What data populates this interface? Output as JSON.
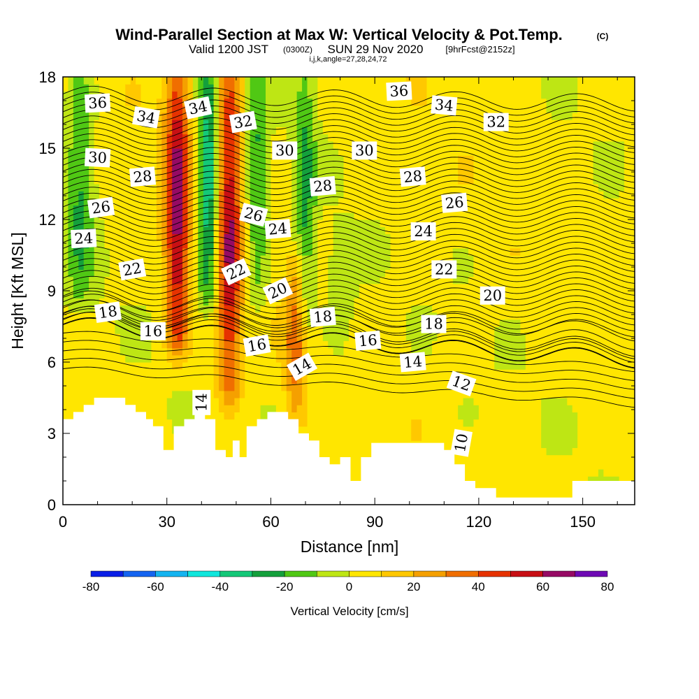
{
  "header": {
    "title": "Wind-Parallel Section at Max W: Vertical Velocity & Pot.Temp.",
    "title_units": "(C)",
    "valid_prefix": "Valid 1200 JST",
    "valid_utc": "(0300Z)",
    "valid_date": "SUN 29 Nov 2020",
    "forecast": "[9hrFcst@2152z]",
    "indices": "i,j,k,angle=27,28,24,72"
  },
  "chart_data": {
    "type": "heatmap",
    "xlabel": "Distance [nm]",
    "ylabel": "Height [Kft MSL]",
    "xlim": [
      0,
      165
    ],
    "ylim": [
      0,
      18
    ],
    "x_ticks": [
      0,
      30,
      60,
      90,
      120,
      150
    ],
    "y_ticks": [
      0,
      3,
      6,
      9,
      12,
      15,
      18
    ],
    "colorbar": {
      "label": "Vertical Velocity [cm/s]",
      "ticks": [
        -80,
        -60,
        -40,
        -20,
        0,
        20,
        40,
        60,
        80
      ],
      "levels": [
        -80,
        -70,
        -60,
        -50,
        -40,
        -30,
        -20,
        -10,
        0,
        10,
        20,
        30,
        40,
        50,
        60,
        70,
        80
      ],
      "colors": [
        "#0a1ee6",
        "#1464f0",
        "#14b4f0",
        "#10e6dc",
        "#14c878",
        "#14a03c",
        "#50c814",
        "#bee614",
        "#ffe600",
        "#ffc800",
        "#f5a000",
        "#f06e00",
        "#e63200",
        "#c80f14",
        "#960a64",
        "#6e0ab4"
      ]
    },
    "terrain_kft": [
      [
        0,
        3.6
      ],
      [
        3,
        3.6
      ],
      [
        3,
        3.9
      ],
      [
        6,
        3.9
      ],
      [
        6,
        4.2
      ],
      [
        9,
        4.2
      ],
      [
        9,
        4.5
      ],
      [
        18,
        4.5
      ],
      [
        18,
        4.2
      ],
      [
        21,
        4.2
      ],
      [
        21,
        3.9
      ],
      [
        24,
        3.9
      ],
      [
        24,
        3.6
      ],
      [
        26,
        3.6
      ],
      [
        26,
        3.3
      ],
      [
        29,
        3.3
      ],
      [
        29,
        2.3
      ],
      [
        32,
        2.3
      ],
      [
        32,
        3.3
      ],
      [
        35,
        3.3
      ],
      [
        35,
        3.6
      ],
      [
        38,
        3.6
      ],
      [
        38,
        3.9
      ],
      [
        41,
        3.9
      ],
      [
        41,
        3.6
      ],
      [
        44,
        3.6
      ],
      [
        44,
        2.3
      ],
      [
        47,
        2.3
      ],
      [
        47,
        2.0
      ],
      [
        49,
        2.0
      ],
      [
        49,
        2.7
      ],
      [
        51,
        2.7
      ],
      [
        51,
        2.0
      ],
      [
        53,
        2.0
      ],
      [
        53,
        3.3
      ],
      [
        56,
        3.3
      ],
      [
        56,
        3.6
      ],
      [
        59,
        3.6
      ],
      [
        59,
        3.9
      ],
      [
        65,
        3.9
      ],
      [
        65,
        3.6
      ],
      [
        68,
        3.6
      ],
      [
        68,
        3.0
      ],
      [
        71,
        3.0
      ],
      [
        71,
        2.7
      ],
      [
        74,
        2.7
      ],
      [
        74,
        2.0
      ],
      [
        77,
        2.0
      ],
      [
        77,
        1.7
      ],
      [
        80,
        1.7
      ],
      [
        80,
        2.0
      ],
      [
        83,
        2.0
      ],
      [
        83,
        1.0
      ],
      [
        86,
        1.0
      ],
      [
        86,
        2.0
      ],
      [
        89,
        2.0
      ],
      [
        89,
        2.6
      ],
      [
        95,
        2.6
      ],
      [
        95,
        2.6
      ],
      [
        110,
        2.6
      ],
      [
        110,
        2.3
      ],
      [
        113,
        2.3
      ],
      [
        113,
        1.7
      ],
      [
        116,
        1.7
      ],
      [
        116,
        1.0
      ],
      [
        119,
        1.0
      ],
      [
        119,
        0.7
      ],
      [
        125,
        0.7
      ],
      [
        125,
        0.3
      ],
      [
        147,
        0.3
      ],
      [
        147,
        1.0
      ],
      [
        165,
        1.0
      ]
    ],
    "theta_contour_labels": [
      {
        "label": "36",
        "x": 10,
        "y": 16.9,
        "rot": -3
      },
      {
        "label": "34",
        "x": 24,
        "y": 16.3,
        "rot": 10
      },
      {
        "label": "34",
        "x": 39,
        "y": 16.7,
        "rot": -12
      },
      {
        "label": "32",
        "x": 52,
        "y": 16.1,
        "rot": -10
      },
      {
        "label": "36",
        "x": 97,
        "y": 17.4,
        "rot": -3
      },
      {
        "label": "34",
        "x": 110,
        "y": 16.8,
        "rot": 5
      },
      {
        "label": "32",
        "x": 125,
        "y": 16.1,
        "rot": 0
      },
      {
        "label": "30",
        "x": 10,
        "y": 14.6,
        "rot": 3
      },
      {
        "label": "30",
        "x": 64,
        "y": 14.9,
        "rot": 0
      },
      {
        "label": "30",
        "x": 87,
        "y": 14.9,
        "rot": 0
      },
      {
        "label": "28",
        "x": 23,
        "y": 13.8,
        "rot": -5
      },
      {
        "label": "28",
        "x": 75,
        "y": 13.4,
        "rot": -5
      },
      {
        "label": "28",
        "x": 101,
        "y": 13.8,
        "rot": -5
      },
      {
        "label": "26",
        "x": 11,
        "y": 12.5,
        "rot": -8
      },
      {
        "label": "26",
        "x": 55,
        "y": 12.2,
        "rot": 15
      },
      {
        "label": "26",
        "x": 113,
        "y": 12.7,
        "rot": -5
      },
      {
        "label": "24",
        "x": 6,
        "y": 11.2,
        "rot": -3
      },
      {
        "label": "24",
        "x": 62,
        "y": 11.6,
        "rot": -5
      },
      {
        "label": "24",
        "x": 104,
        "y": 11.5,
        "rot": 0
      },
      {
        "label": "22",
        "x": 20,
        "y": 9.9,
        "rot": -10
      },
      {
        "label": "22",
        "x": 50,
        "y": 9.8,
        "rot": -25
      },
      {
        "label": "22",
        "x": 110,
        "y": 9.9,
        "rot": 0
      },
      {
        "label": "20",
        "x": 62,
        "y": 9.0,
        "rot": -25
      },
      {
        "label": "20",
        "x": 124,
        "y": 8.8,
        "rot": 0
      },
      {
        "label": "18",
        "x": 13,
        "y": 8.1,
        "rot": -8
      },
      {
        "label": "18",
        "x": 75,
        "y": 7.9,
        "rot": -5
      },
      {
        "label": "18",
        "x": 107,
        "y": 7.6,
        "rot": 0
      },
      {
        "label": "16",
        "x": 26,
        "y": 7.3,
        "rot": 0
      },
      {
        "label": "16",
        "x": 56,
        "y": 6.7,
        "rot": -10
      },
      {
        "label": "16",
        "x": 88,
        "y": 6.9,
        "rot": -5
      },
      {
        "label": "14",
        "x": 69,
        "y": 5.8,
        "rot": -30
      },
      {
        "label": "14",
        "x": 101,
        "y": 6.0,
        "rot": -5
      },
      {
        "label": "14",
        "x": 40,
        "y": 4.3,
        "rot": -90
      },
      {
        "label": "12",
        "x": 115,
        "y": 5.1,
        "rot": 20
      },
      {
        "label": "10",
        "x": 115,
        "y": 2.6,
        "rot": -80
      }
    ],
    "w_features": [
      {
        "sign": "up",
        "x": 33,
        "width": 3.5,
        "y0": 7,
        "y1": 18,
        "max": 60
      },
      {
        "sign": "up",
        "x": 48,
        "width": 3.5,
        "y0": 5,
        "y1": 18,
        "max": 55
      },
      {
        "sign": "down",
        "x": 42,
        "width": 3,
        "y0": 9,
        "y1": 18,
        "max": -45
      },
      {
        "sign": "down",
        "x": 5,
        "width": 4,
        "y0": 9,
        "y1": 18,
        "max": -25
      },
      {
        "sign": "down",
        "x": 56,
        "width": 3,
        "y0": 9,
        "y1": 18,
        "max": -25
      },
      {
        "sign": "down",
        "x": 70,
        "width": 3,
        "y0": 8,
        "y1": 18,
        "max": -25
      },
      {
        "sign": "down",
        "x": 80,
        "width": 4,
        "y0": 7,
        "y1": 11,
        "max": -15
      },
      {
        "sign": "up",
        "x": 67,
        "width": 3,
        "y0": 4,
        "y1": 10,
        "max": 30
      }
    ]
  }
}
